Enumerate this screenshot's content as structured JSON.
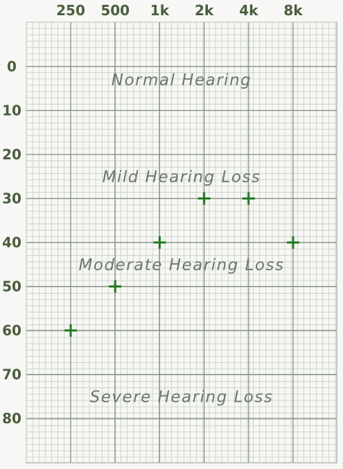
{
  "chart_data": {
    "type": "scatter",
    "title": "",
    "xlabel": "",
    "ylabel": "",
    "x_ticks": [
      "250",
      "500",
      "1k",
      "2k",
      "4k",
      "8k"
    ],
    "y_ticks": [
      "0",
      "10",
      "20",
      "30",
      "40",
      "50",
      "60",
      "70",
      "80"
    ],
    "x_scale": "log",
    "y_inverted": true,
    "ylim": [
      -10,
      90
    ],
    "grid": true,
    "marker": "plus",
    "marker_color": "#1f7a1f",
    "series": [
      {
        "points": [
          {
            "x": "250",
            "y": 60
          },
          {
            "x": "500",
            "y": 50
          },
          {
            "x": "1k",
            "y": 40
          },
          {
            "x": "2k",
            "y": 30
          },
          {
            "x": "4k",
            "y": 30
          },
          {
            "x": "8k",
            "y": 40
          }
        ]
      }
    ],
    "regions": [
      {
        "label": "Normal Hearing",
        "y": 3
      },
      {
        "label": "Mild Hearing Loss",
        "y": 25
      },
      {
        "label": "Moderate Hearing Loss",
        "y": 45
      },
      {
        "label": "Severe Hearing Loss",
        "y": 75
      }
    ]
  }
}
